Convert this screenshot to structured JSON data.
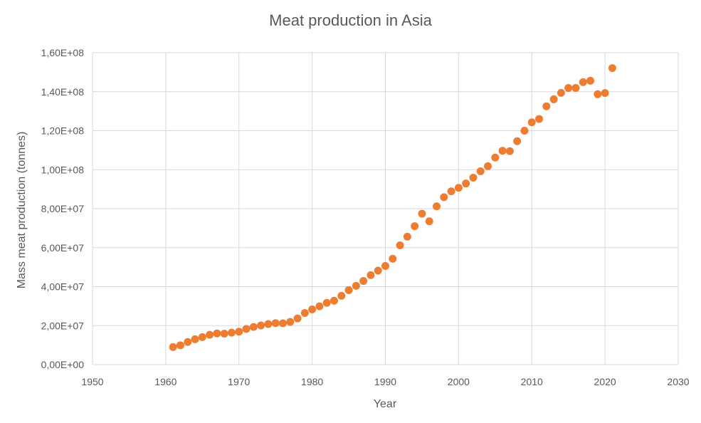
{
  "chart_data": {
    "type": "scatter",
    "title": "Meat production in Asia",
    "xlabel": "Year",
    "ylabel": "Mass meat production (tonnes)",
    "xlim": [
      1950,
      2030
    ],
    "ylim": [
      0,
      160000000
    ],
    "x_ticks": [
      1950,
      1960,
      1970,
      1980,
      1990,
      2000,
      2010,
      2020,
      2030
    ],
    "y_ticks": [
      0,
      20000000,
      40000000,
      60000000,
      80000000,
      100000000,
      120000000,
      140000000,
      160000000
    ],
    "x_tick_labels": [
      "1950",
      "1960",
      "1970",
      "1980",
      "1990",
      "2000",
      "2010",
      "2020",
      "2030"
    ],
    "y_tick_labels": [
      "0,00E+00",
      "2,00E+07",
      "4,00E+07",
      "6,00E+07",
      "8,00E+07",
      "1,00E+08",
      "1,20E+08",
      "1,40E+08",
      "1,60E+08"
    ],
    "grid": true,
    "marker_color": "#ED7D31",
    "grid_color": "#D9D9D9",
    "series": [
      {
        "x": [
          1961,
          1962,
          1963,
          1964,
          1965,
          1966,
          1967,
          1968,
          1969,
          1970,
          1971,
          1972,
          1973,
          1974,
          1975,
          1976,
          1977,
          1978,
          1979,
          1980,
          1981,
          1982,
          1983,
          1984,
          1985,
          1986,
          1987,
          1988,
          1989,
          1990,
          1991,
          1992,
          1993,
          1994,
          1995,
          1996,
          1997,
          1998,
          1999,
          2000,
          2001,
          2002,
          2003,
          2004,
          2005,
          2006,
          2007,
          2008,
          2009,
          2010,
          2011,
          2012,
          2013,
          2014,
          2015,
          2016,
          2017,
          2018,
          2019,
          2020,
          2021
        ],
        "y": [
          9000000,
          9900000,
          11600000,
          13000000,
          14100000,
          15300000,
          16000000,
          15900000,
          16400000,
          16900000,
          18300000,
          19300000,
          20100000,
          20800000,
          21300000,
          21200000,
          21900000,
          23700000,
          26500000,
          28300000,
          29900000,
          31700000,
          32800000,
          35300000,
          38200000,
          40400000,
          42900000,
          45900000,
          48200000,
          50600000,
          54300000,
          61200000,
          65600000,
          71000000,
          77400000,
          73500000,
          81200000,
          85900000,
          88900000,
          90700000,
          92900000,
          95900000,
          99200000,
          101800000,
          106200000,
          109700000,
          109500000,
          114600000,
          120000000,
          124300000,
          126000000,
          132500000,
          136100000,
          139400000,
          141900000,
          141900000,
          144900000,
          145600000,
          138700000,
          139300000,
          152100000
        ]
      }
    ]
  }
}
